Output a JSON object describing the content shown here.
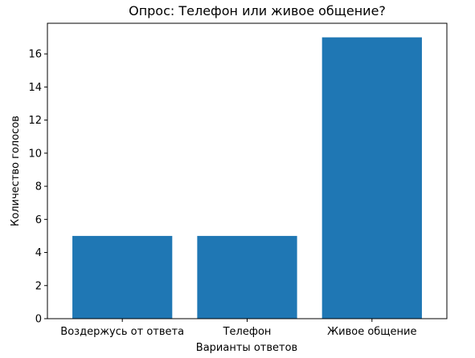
{
  "chart_data": {
    "type": "bar",
    "title": "Опрос: Телефон или живое общение?",
    "xlabel": "Варианты ответов",
    "ylabel": "Количество голосов",
    "categories": [
      "Воздержусь от ответа",
      "Телефон",
      "Живое общение"
    ],
    "values": [
      5,
      5,
      17
    ],
    "ylim": [
      0,
      17.85
    ],
    "yticks": [
      0,
      2,
      4,
      6,
      8,
      10,
      12,
      14,
      16
    ],
    "grid": false,
    "bar_color": "#1f77b4"
  }
}
